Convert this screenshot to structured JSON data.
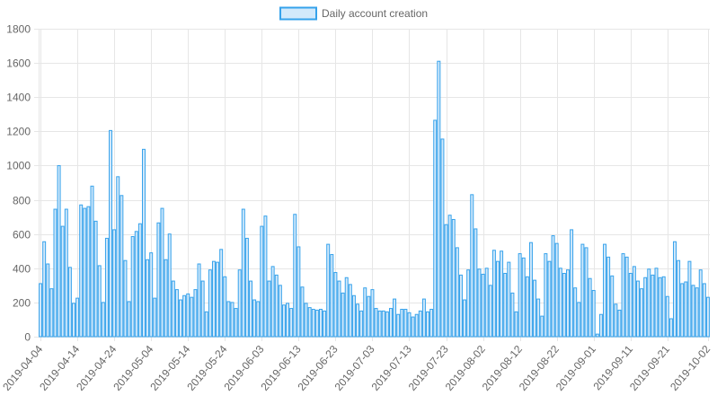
{
  "chart_data": {
    "type": "bar",
    "legend": {
      "label": "Daily account creation",
      "position": "top"
    },
    "colors": {
      "bar_fill": "#d2e9fb",
      "bar_stroke": "#36a2eb",
      "grid": "#e6e6e6",
      "text": "#666666"
    },
    "grid": true,
    "ylim": [
      0,
      1800
    ],
    "yticks": [
      0,
      200,
      400,
      600,
      800,
      1000,
      1200,
      1400,
      1600,
      1800
    ],
    "x_start": "2019-04-04",
    "x_tick_labels": [
      "2019-04-04",
      "2019-04-14",
      "2019-04-24",
      "2019-05-04",
      "2019-05-14",
      "2019-05-24",
      "2019-06-03",
      "2019-06-13",
      "2019-06-23",
      "2019-07-03",
      "2019-07-13",
      "2019-07-23",
      "2019-08-02",
      "2019-08-12",
      "2019-08-22",
      "2019-09-01",
      "2019-09-11",
      "2019-09-21",
      "2019-10-02"
    ],
    "values": [
      310,
      555,
      425,
      280,
      745,
      1000,
      645,
      745,
      405,
      195,
      225,
      770,
      750,
      760,
      880,
      675,
      415,
      200,
      575,
      1205,
      625,
      935,
      825,
      445,
      205,
      585,
      615,
      660,
      1095,
      450,
      490,
      225,
      665,
      750,
      450,
      600,
      325,
      275,
      215,
      240,
      250,
      230,
      275,
      425,
      325,
      145,
      390,
      440,
      435,
      510,
      350,
      205,
      200,
      165,
      390,
      745,
      575,
      325,
      215,
      205,
      645,
      705,
      325,
      410,
      360,
      300,
      185,
      195,
      165,
      715,
      525,
      290,
      195,
      170,
      160,
      155,
      160,
      150,
      540,
      480,
      375,
      325,
      255,
      345,
      305,
      240,
      190,
      150,
      285,
      235,
      275,
      165,
      150,
      150,
      145,
      165,
      220,
      130,
      160,
      160,
      140,
      115,
      130,
      150,
      220,
      145,
      160,
      1265,
      1610,
      1155,
      655,
      710,
      685,
      520,
      360,
      215,
      390,
      830,
      630,
      395,
      365,
      400,
      300,
      505,
      440,
      500,
      370,
      435,
      255,
      145,
      485,
      460,
      350,
      550,
      330,
      220,
      120,
      485,
      440,
      590,
      545,
      400,
      370,
      390,
      625,
      285,
      200,
      540,
      520,
      340,
      270,
      15,
      130,
      540,
      465,
      355,
      190,
      155,
      485,
      465,
      370,
      410,
      325,
      280,
      345,
      395,
      360,
      400,
      345,
      350,
      235,
      105,
      555,
      445,
      310,
      320,
      440,
      300,
      285,
      390,
      310,
      230
    ]
  }
}
